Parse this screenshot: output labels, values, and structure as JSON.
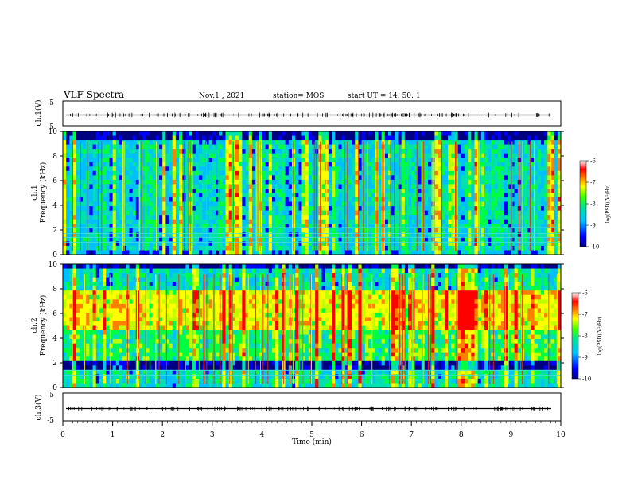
{
  "header": {
    "title": "VLF Spectra",
    "date": "Nov.1  , 2021",
    "station": "station= MOS",
    "start": "start  UT =   14: 50: 1"
  },
  "chart_data": [
    {
      "type": "line",
      "name": "ch1-waveform",
      "ylabel": "ch.1(V)",
      "ylim": [
        -5,
        5
      ],
      "yticks": [
        "5",
        "-5"
      ],
      "baseline": 0
    },
    {
      "type": "heatmap",
      "name": "ch1-spectrogram",
      "ylabel": "ch.1\nFrequency (kHz)",
      "ylim": [
        0,
        10
      ],
      "yticks": [
        "0",
        "2",
        "4",
        "6",
        "8",
        "10"
      ],
      "xlim": [
        0,
        10
      ],
      "horizontal_lines_khz": [
        0.6,
        1.0,
        1.4,
        1.7,
        2.2
      ],
      "colorbar": {
        "label": "log(PSD)(V²/Hz)",
        "range": [
          -10,
          -6
        ],
        "ticks": [
          "-6",
          "-7",
          "-8",
          "-9",
          "-10"
        ]
      }
    },
    {
      "type": "heatmap",
      "name": "ch2-spectrogram",
      "ylabel": "ch.2\nFrequency (kHz)",
      "ylim": [
        0,
        10
      ],
      "yticks": [
        "0",
        "2",
        "4",
        "6",
        "8",
        "10"
      ],
      "xlim": [
        0,
        10
      ],
      "horizontal_lines_khz": [
        0.6,
        1.0,
        1.4
      ],
      "colorbar": {
        "label": "log(PSD)(V²/Hz)",
        "range": [
          -10,
          -6
        ],
        "ticks": [
          "-6",
          "-7",
          "-8",
          "-9",
          "-10"
        ]
      }
    },
    {
      "type": "line",
      "name": "ch3-waveform",
      "ylabel": "ch.3(V)",
      "ylim": [
        -5,
        5
      ],
      "yticks": [
        "5",
        "-5"
      ],
      "baseline": 0
    }
  ],
  "xaxis": {
    "label": "Time  (min)",
    "range": [
      0,
      10
    ],
    "ticks": [
      "0",
      "1",
      "2",
      "3",
      "4",
      "5",
      "6",
      "7",
      "8",
      "9",
      "10"
    ]
  },
  "colors": {
    "scale": [
      "#000080",
      "#0000ff",
      "#00c0ff",
      "#00e0b0",
      "#00ff40",
      "#c0ff00",
      "#ffff00",
      "#ff8000",
      "#ff0000",
      "#ffffff"
    ]
  }
}
